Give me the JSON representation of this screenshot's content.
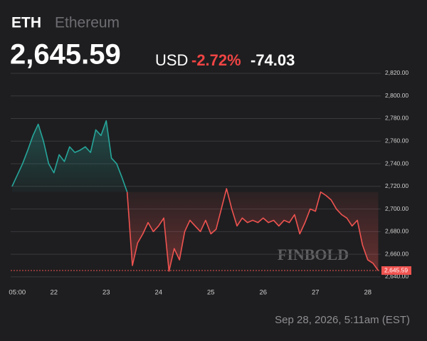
{
  "chart_data": {
    "type": "line",
    "ticker": "ETH",
    "name": "Ethereum",
    "price": "2,645.59",
    "currency": "USD",
    "change_percent": "-2.72%",
    "change": "-74.03",
    "timestamp": "Sep 28, 2026, 5:11am (EST)",
    "watermark": "FINBOLD",
    "categories": [
      null,
      "05:00",
      null,
      null,
      null,
      null,
      null,
      null,
      "22",
      null,
      null,
      null,
      null,
      null,
      null,
      null,
      null,
      null,
      "23",
      null,
      null,
      null,
      null,
      null,
      null,
      null,
      null,
      null,
      "24",
      null,
      null,
      null,
      null,
      null,
      null,
      null,
      null,
      null,
      "25",
      null,
      null,
      null,
      null,
      null,
      null,
      null,
      null,
      null,
      "26",
      null,
      null,
      null,
      null,
      null,
      null,
      null,
      null,
      null,
      "27",
      null,
      null,
      null,
      null,
      null,
      null,
      null,
      null,
      null,
      "28",
      null,
      null
    ],
    "series": [
      {
        "color": "#26a69a",
        "values": [
          2720,
          2730,
          2740,
          2752,
          2765,
          2775,
          2760,
          2740,
          2732,
          2748,
          2742,
          2755,
          2750,
          2752,
          2755,
          2750,
          2770,
          2765,
          2778,
          2745,
          2740,
          2728,
          2715,
          null,
          null,
          null,
          null,
          null,
          null,
          null,
          null,
          null,
          null,
          null,
          null,
          null,
          null,
          null,
          null,
          null,
          null,
          null,
          null,
          null,
          null,
          null,
          null,
          null,
          null,
          null,
          null,
          null,
          null,
          null,
          null,
          null,
          null,
          null,
          null,
          null,
          null,
          null,
          null,
          null,
          null,
          null,
          null,
          null,
          null,
          null,
          null
        ]
      },
      {
        "color": "#ef5350",
        "values": [
          null,
          null,
          null,
          null,
          null,
          null,
          null,
          null,
          null,
          null,
          null,
          null,
          null,
          null,
          null,
          null,
          null,
          null,
          null,
          null,
          null,
          null,
          2715,
          2650,
          2670,
          2678,
          2688,
          2680,
          2685,
          2692,
          2645,
          2665,
          2655,
          2680,
          2690,
          2685,
          2680,
          2690,
          2678,
          2682,
          2700,
          2718,
          2700,
          2685,
          2692,
          2688,
          2690,
          2688,
          2692,
          2688,
          2690,
          2685,
          2690,
          2688,
          2695,
          2678,
          2688,
          2700,
          2698,
          2715,
          2712,
          2708,
          2700,
          2695,
          2692,
          2685,
          2690,
          2668,
          2655,
          2652,
          2645.59
        ]
      }
    ],
    "ylim": [
      2633,
      2825
    ],
    "yticks": [
      {
        "value": 2640,
        "label": "2,640.00"
      },
      {
        "value": 2660,
        "label": "2,660.00"
      },
      {
        "value": 2680,
        "label": "2,680.00"
      },
      {
        "value": 2700,
        "label": "2,700.00"
      },
      {
        "value": 2720,
        "label": "2,720.00"
      },
      {
        "value": 2740,
        "label": "2,740.00"
      },
      {
        "value": 2760,
        "label": "2,760.00"
      },
      {
        "value": 2780,
        "label": "2,780.00"
      },
      {
        "value": 2800,
        "label": "2,800.00"
      },
      {
        "value": 2820,
        "label": "2,820.00"
      }
    ],
    "grid": true,
    "last_price": {
      "value": 2645.59,
      "label": "2,645.59"
    }
  }
}
